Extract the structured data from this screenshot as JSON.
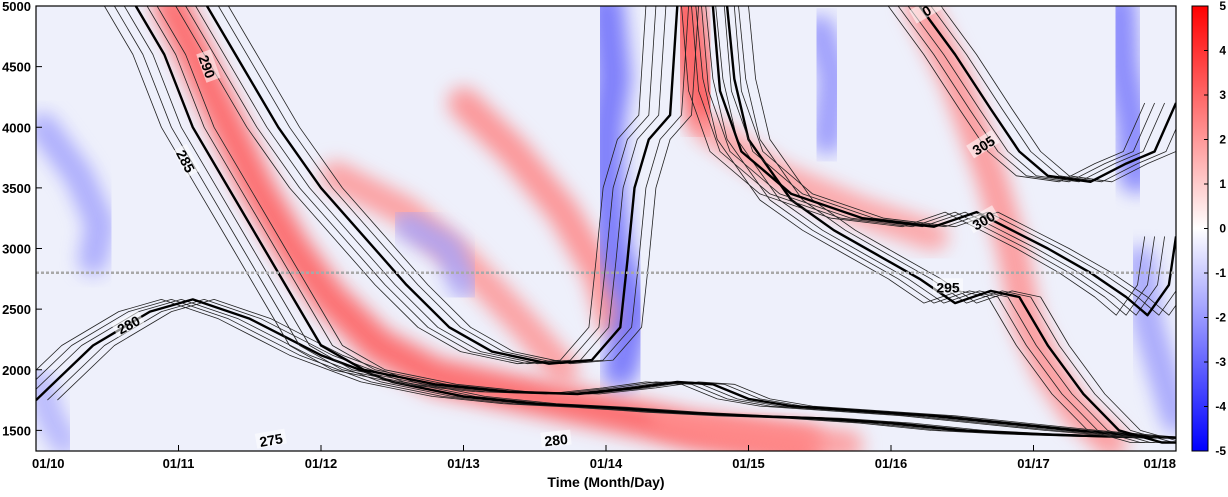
{
  "chart_data": {
    "type": "heatmap",
    "title": "",
    "xlabel": "Time (Month/Day)",
    "ylabel": "",
    "x_tick_labels": [
      "01/10",
      "01/11",
      "01/12",
      "01/13",
      "01/14",
      "01/15",
      "01/16",
      "01/17",
      "01/18"
    ],
    "x_range_days": [
      0,
      8
    ],
    "y_ticks": [
      1500,
      2000,
      2500,
      3000,
      3500,
      4000,
      4500,
      5000
    ],
    "y_range": [
      1330,
      5000
    ],
    "reference_line_y": 2800,
    "colorbar": {
      "ticks": [
        -5,
        -4,
        -3,
        -2,
        -1,
        0,
        1,
        2,
        3,
        4,
        5
      ],
      "range": [
        -5,
        5
      ],
      "colors": {
        "negative": "#0000ff",
        "zero": "#ffffff",
        "positive": "#ff0000"
      }
    },
    "fill_bands": [
      {
        "sign": "positive",
        "amplitude": 3.5,
        "points": [
          [
            0.95,
            5000
          ],
          [
            1.15,
            4500
          ],
          [
            1.35,
            4000
          ],
          [
            1.55,
            3500
          ],
          [
            1.8,
            3000
          ],
          [
            2.05,
            2600
          ],
          [
            2.4,
            2200
          ],
          [
            2.8,
            1950
          ],
          [
            3.4,
            1800
          ],
          [
            4.0,
            1650
          ],
          [
            4.6,
            1500
          ],
          [
            5.4,
            1380
          ]
        ]
      },
      {
        "sign": "positive",
        "amplitude": 1.8,
        "points": [
          [
            2.1,
            3600
          ],
          [
            2.6,
            3300
          ],
          [
            3.0,
            2900
          ],
          [
            3.4,
            2400
          ],
          [
            3.7,
            2000
          ]
        ]
      },
      {
        "sign": "positive",
        "amplitude": 2.2,
        "points": [
          [
            3.0,
            4200
          ],
          [
            3.35,
            3800
          ],
          [
            3.7,
            3300
          ],
          [
            3.95,
            2800
          ],
          [
            4.05,
            2400
          ]
        ]
      },
      {
        "sign": "positive",
        "amplitude": 4.0,
        "points": [
          [
            4.55,
            5000
          ],
          [
            4.62,
            4500
          ],
          [
            4.7,
            4100
          ]
        ]
      },
      {
        "sign": "positive",
        "amplitude": 1.6,
        "points": [
          [
            4.7,
            4000
          ],
          [
            5.2,
            3600
          ],
          [
            5.8,
            3300
          ],
          [
            6.3,
            3100
          ]
        ]
      },
      {
        "sign": "positive",
        "amplitude": 2.0,
        "points": [
          [
            6.2,
            5000
          ],
          [
            6.45,
            4400
          ],
          [
            6.7,
            3600
          ],
          [
            6.85,
            3000
          ],
          [
            6.95,
            2400
          ],
          [
            7.1,
            2000
          ],
          [
            7.3,
            1650
          ],
          [
            7.55,
            1400
          ]
        ]
      },
      {
        "sign": "positive",
        "amplitude": 1.8,
        "points": [
          [
            4.4,
            1600
          ],
          [
            4.8,
            1500
          ],
          [
            5.3,
            1420
          ],
          [
            5.7,
            1380
          ]
        ]
      },
      {
        "sign": "negative",
        "amplitude": 3.5,
        "points": [
          [
            4.0,
            5000
          ],
          [
            4.05,
            4400
          ],
          [
            4.0,
            4000
          ],
          [
            4.0,
            3600
          ],
          [
            4.05,
            3000
          ],
          [
            4.2,
            2500
          ],
          [
            4.1,
            2000
          ]
        ]
      },
      {
        "sign": "negative",
        "amplitude": 3.0,
        "points": [
          [
            7.6,
            5000
          ],
          [
            7.62,
            4500
          ],
          [
            7.7,
            4000
          ],
          [
            7.72,
            3600
          ]
        ]
      },
      {
        "sign": "negative",
        "amplitude": 2.2,
        "points": [
          [
            5.5,
            4800
          ],
          [
            5.6,
            4400
          ],
          [
            5.55,
            3900
          ]
        ]
      },
      {
        "sign": "negative",
        "amplitude": 1.6,
        "points": [
          [
            0.05,
            4000
          ],
          [
            0.3,
            3600
          ],
          [
            0.45,
            3200
          ],
          [
            0.4,
            2900
          ]
        ]
      },
      {
        "sign": "negative",
        "amplitude": 1.8,
        "points": [
          [
            7.75,
            2900
          ],
          [
            7.8,
            2400
          ],
          [
            7.9,
            2000
          ],
          [
            8.0,
            1600
          ]
        ]
      },
      {
        "sign": "negative",
        "amplitude": 1.5,
        "points": [
          [
            2.6,
            3200
          ],
          [
            2.9,
            3000
          ],
          [
            3.0,
            2700
          ]
        ]
      },
      {
        "sign": "negative",
        "amplitude": 1.2,
        "points": [
          [
            0.02,
            1900
          ],
          [
            0.1,
            1600
          ],
          [
            0.2,
            1400
          ]
        ]
      }
    ],
    "contours": [
      {
        "value": 280,
        "label": "280",
        "major": true,
        "points": [
          [
            0.0,
            1750
          ],
          [
            0.4,
            2200
          ],
          [
            0.8,
            2480
          ],
          [
            1.1,
            2580
          ],
          [
            1.5,
            2420
          ],
          [
            2.0,
            2120
          ],
          [
            2.5,
            1900
          ],
          [
            3.0,
            1780
          ],
          [
            3.5,
            1720
          ],
          [
            4.0,
            1690
          ],
          [
            4.5,
            1650
          ],
          [
            5.0,
            1620
          ],
          [
            5.5,
            1600
          ],
          [
            6.0,
            1560
          ],
          [
            6.5,
            1500
          ],
          [
            7.0,
            1470
          ],
          [
            7.5,
            1450
          ],
          [
            8.0,
            1440
          ]
        ]
      },
      {
        "value": 285,
        "label": "285",
        "major": true,
        "points": [
          [
            0.7,
            5000
          ],
          [
            0.9,
            4600
          ],
          [
            1.1,
            4000
          ],
          [
            1.35,
            3500
          ],
          [
            1.6,
            3000
          ],
          [
            1.8,
            2600
          ],
          [
            2.0,
            2200
          ],
          [
            2.3,
            2000
          ],
          [
            2.8,
            1880
          ],
          [
            3.3,
            1820
          ],
          [
            3.8,
            1800
          ],
          [
            4.2,
            1850
          ],
          [
            4.5,
            1900
          ],
          [
            4.75,
            1880
          ],
          [
            5.0,
            1760
          ],
          [
            5.3,
            1700
          ],
          [
            5.8,
            1660
          ],
          [
            6.3,
            1620
          ],
          [
            6.8,
            1560
          ],
          [
            7.3,
            1500
          ],
          [
            7.8,
            1450
          ],
          [
            8.0,
            1440
          ]
        ]
      },
      {
        "value": 290,
        "label": "290",
        "major": true,
        "points": [
          [
            1.2,
            5000
          ],
          [
            1.45,
            4500
          ],
          [
            1.7,
            4000
          ],
          [
            2.0,
            3500
          ],
          [
            2.3,
            3100
          ],
          [
            2.6,
            2700
          ],
          [
            2.9,
            2350
          ],
          [
            3.2,
            2150
          ],
          [
            3.6,
            2050
          ],
          [
            3.9,
            2080
          ],
          [
            4.1,
            2350
          ],
          [
            4.15,
            2900
          ],
          [
            4.2,
            3500
          ],
          [
            4.3,
            3900
          ],
          [
            4.45,
            4100
          ],
          [
            4.5,
            5000
          ]
        ]
      },
      {
        "value": 295,
        "label": "295",
        "major": true,
        "points": [
          [
            4.85,
            5000
          ],
          [
            4.9,
            4400
          ],
          [
            5.0,
            3900
          ],
          [
            5.3,
            3400
          ],
          [
            5.6,
            3150
          ],
          [
            5.9,
            2950
          ],
          [
            6.2,
            2750
          ],
          [
            6.45,
            2550
          ],
          [
            6.7,
            2650
          ],
          [
            6.9,
            2600
          ],
          [
            7.1,
            2200
          ],
          [
            7.35,
            1800
          ],
          [
            7.6,
            1500
          ],
          [
            7.9,
            1400
          ],
          [
            8.0,
            1400
          ]
        ]
      },
      {
        "value": 300,
        "label": "300",
        "major": true,
        "points": [
          [
            4.75,
            5000
          ],
          [
            4.8,
            4300
          ],
          [
            4.95,
            3800
          ],
          [
            5.3,
            3450
          ],
          [
            5.8,
            3250
          ],
          [
            6.3,
            3180
          ],
          [
            6.6,
            3300
          ],
          [
            6.85,
            3150
          ],
          [
            7.1,
            3000
          ],
          [
            7.4,
            2800
          ],
          [
            7.65,
            2600
          ],
          [
            7.8,
            2450
          ],
          [
            7.95,
            2700
          ],
          [
            8.0,
            3100
          ]
        ]
      },
      {
        "value": 305,
        "label": "305",
        "major": true,
        "points": [
          [
            6.2,
            5000
          ],
          [
            6.45,
            4600
          ],
          [
            6.7,
            4150
          ],
          [
            6.9,
            3800
          ],
          [
            7.1,
            3600
          ],
          [
            7.4,
            3550
          ],
          [
            7.65,
            3700
          ],
          [
            7.85,
            3800
          ],
          [
            8.0,
            4200
          ]
        ]
      }
    ],
    "contour_labels": [
      {
        "text": "290",
        "x": 1.2,
        "y": 4500,
        "angle": 70
      },
      {
        "text": "285",
        "x": 1.05,
        "y": 3720,
        "angle": 62
      },
      {
        "text": "280",
        "x": 0.65,
        "y": 2370,
        "angle": -28
      },
      {
        "text": "275",
        "x": 1.65,
        "y": 1420,
        "angle": -10
      },
      {
        "text": "280",
        "x": 3.65,
        "y": 1420,
        "angle": -6
      },
      {
        "text": "295",
        "x": 6.4,
        "y": 2680,
        "angle": 0
      },
      {
        "text": "300",
        "x": 6.65,
        "y": 3230,
        "angle": -30
      },
      {
        "text": "305",
        "x": 6.65,
        "y": 3850,
        "angle": -32
      },
      {
        "text": "0",
        "x": 6.25,
        "y": 4960,
        "angle": -30
      }
    ]
  }
}
